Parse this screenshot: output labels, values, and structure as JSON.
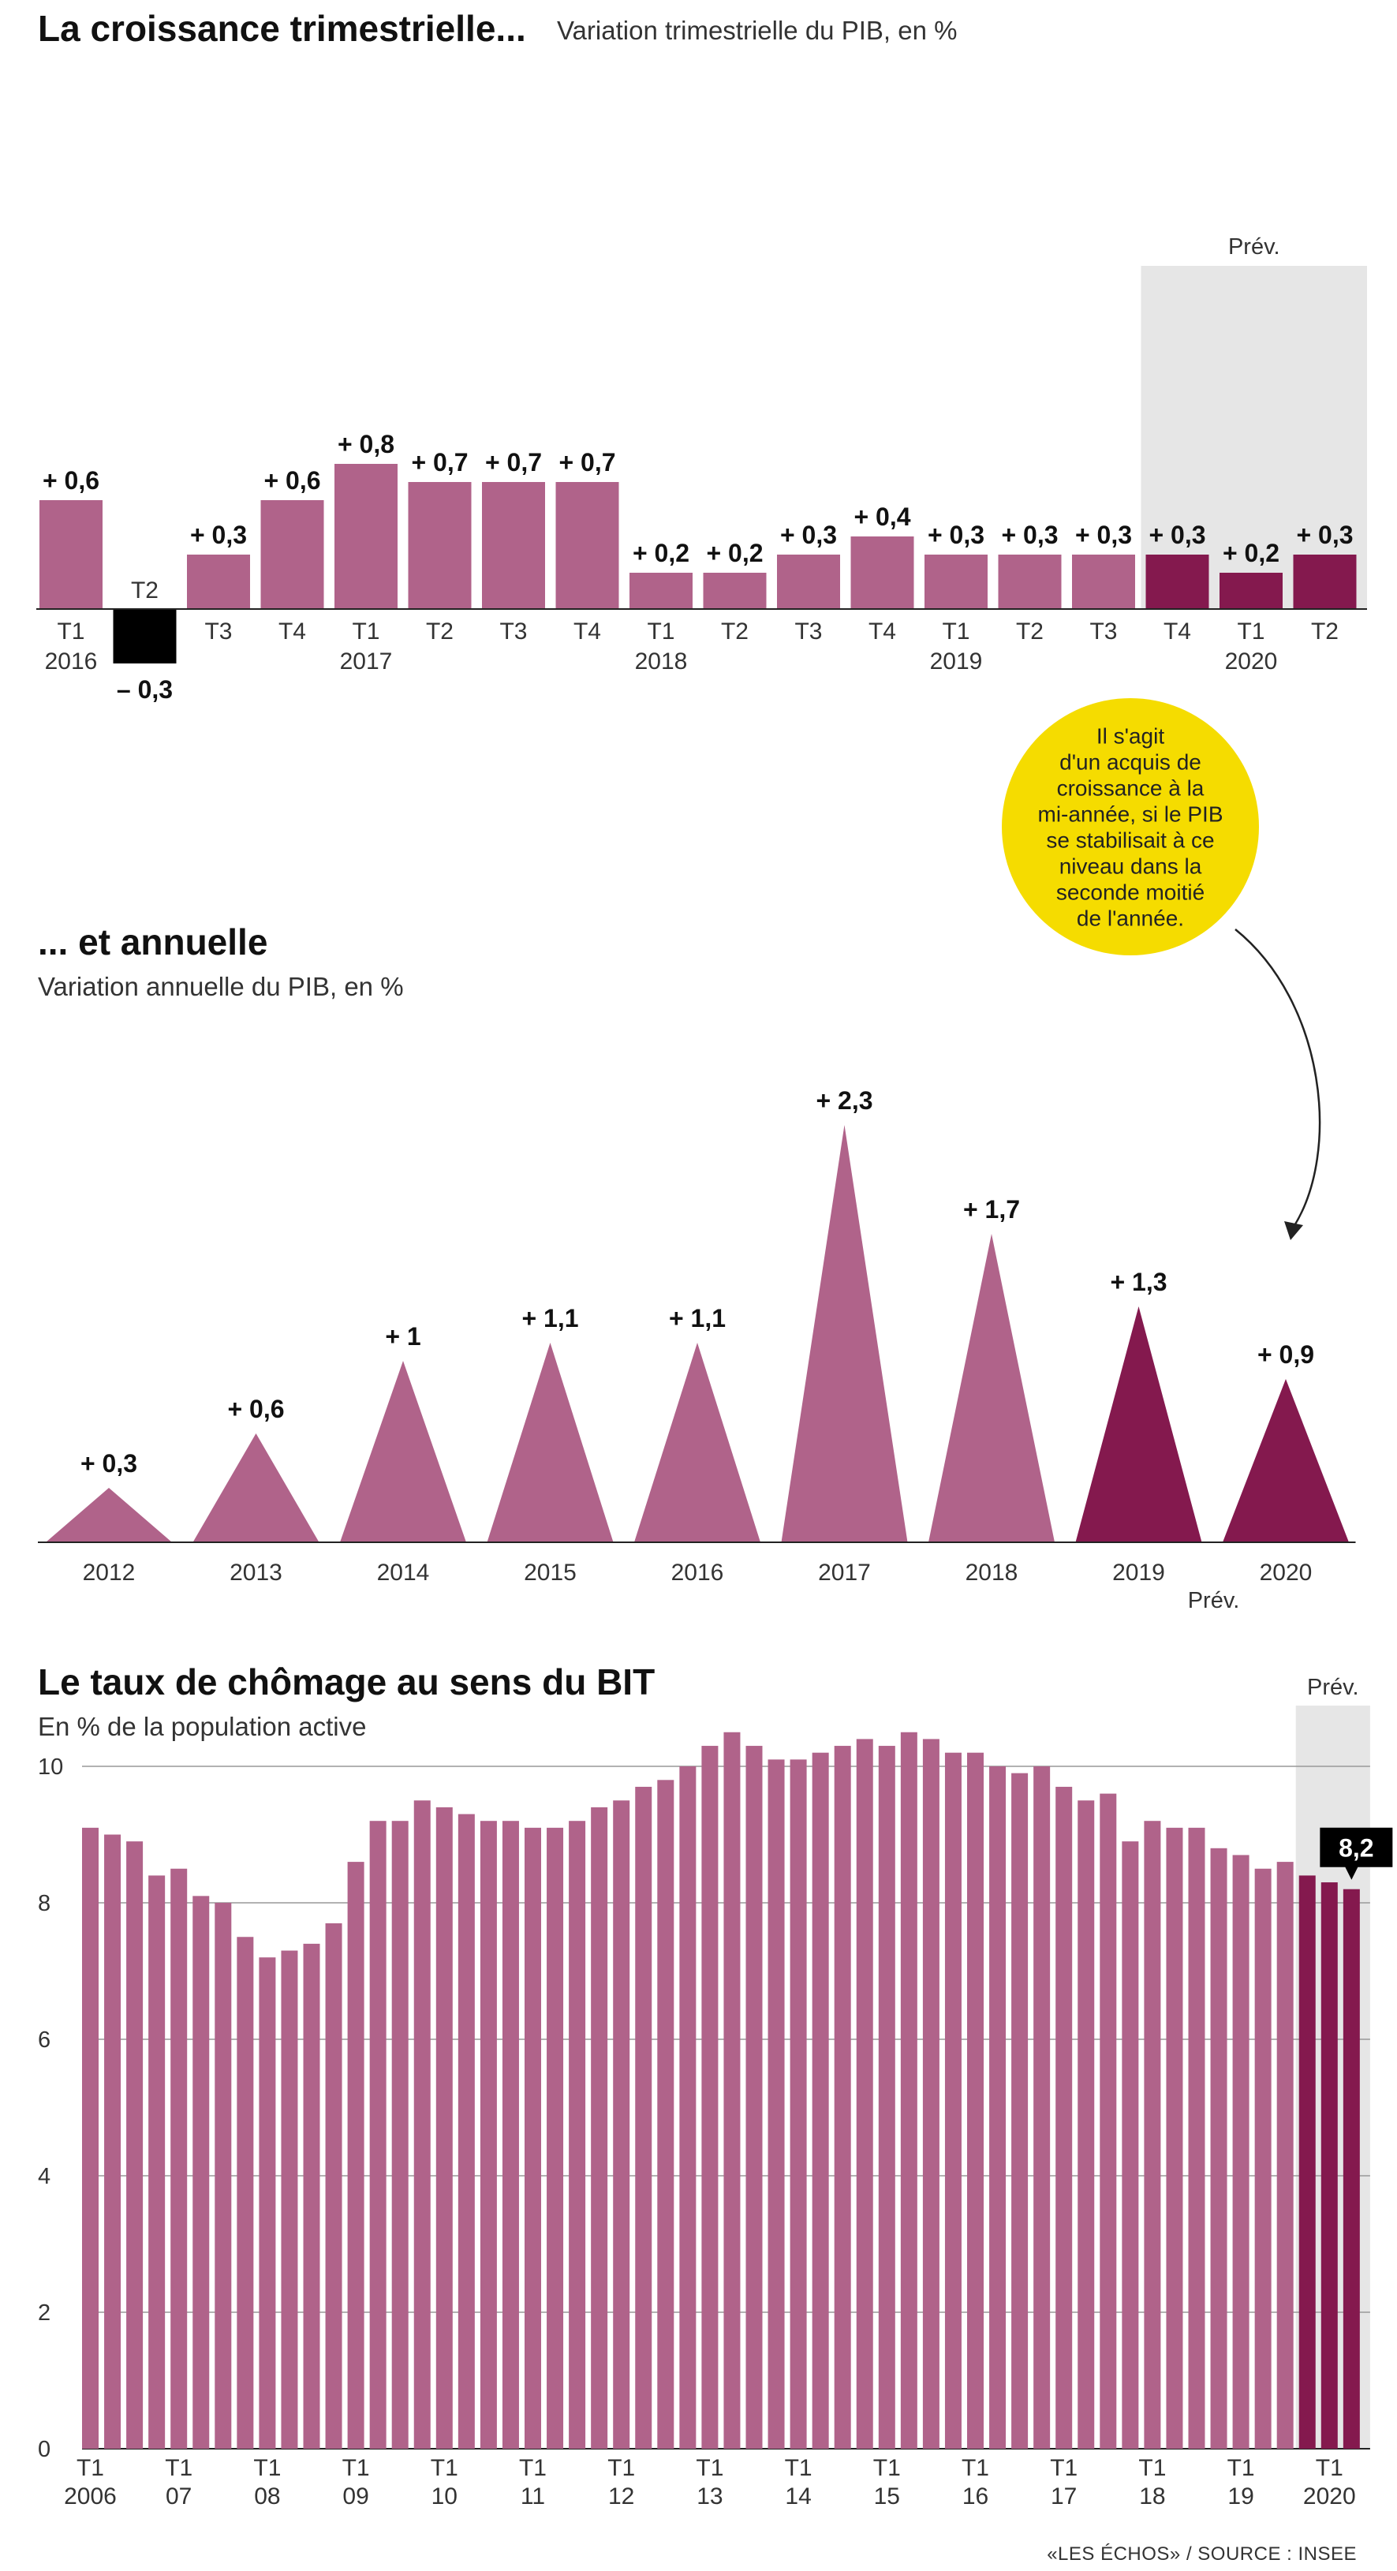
{
  "colors": {
    "past": "#b0638a",
    "forecast": "#84194e",
    "negative": "#000000",
    "forecast_band": "#e6e6e6",
    "note_bubble": "#f5dc00",
    "gridline": "#999999"
  },
  "chart_data": [
    {
      "type": "bar",
      "title": "La croissance trimestrielle...",
      "subtitle": "Variation trimestrielle du PIB, en %",
      "categories": [
        "T1",
        "T2",
        "T3",
        "T4",
        "T1",
        "T2",
        "T3",
        "T4",
        "T1",
        "T2",
        "T3",
        "T4",
        "T1",
        "T2",
        "T3",
        "T4",
        "T1",
        "T2"
      ],
      "years": [
        "2016",
        "",
        "",
        "",
        "2017",
        "",
        "",
        "",
        "2018",
        "",
        "",
        "",
        "2019",
        "",
        "",
        "",
        "2020",
        ""
      ],
      "values": [
        0.6,
        -0.3,
        0.3,
        0.6,
        0.8,
        0.7,
        0.7,
        0.7,
        0.2,
        0.2,
        0.3,
        0.4,
        0.3,
        0.3,
        0.3,
        0.3,
        0.2,
        0.3
      ],
      "labels": [
        "+ 0,6",
        "– 0,3",
        "+ 0,3",
        "+ 0,6",
        "+ 0,8",
        "+ 0,7",
        "+ 0,7",
        "+ 0,7",
        "+ 0,2",
        "+ 0,2",
        "+ 0,3",
        "+ 0,4",
        "+ 0,3",
        "+ 0,3",
        "+ 0,3",
        "+ 0,3",
        "+ 0,2",
        "+ 0,3"
      ],
      "forecast_from_index": 15,
      "forecast_label": "Prév.",
      "ylim": [
        -0.3,
        0.8
      ],
      "grid": false
    },
    {
      "type": "bar",
      "title": "... et annuelle",
      "subtitle": "Variation annuelle du PIB, en %",
      "categories": [
        "2012",
        "2013",
        "2014",
        "2015",
        "2016",
        "2017",
        "2018",
        "2019",
        "2020"
      ],
      "values": [
        0.3,
        0.6,
        1,
        1.1,
        1.1,
        2.3,
        1.7,
        1.3,
        0.9
      ],
      "labels": [
        "+ 0,3",
        "+ 0,6",
        "+ 1",
        "+ 1,1",
        "+ 1,1",
        "+ 2,3",
        "+ 1,7",
        "+ 1,3",
        "+ 0,9"
      ],
      "forecast_from_index": 7,
      "forecast_label": "Prév.",
      "note_lines": [
        "Il s'agit",
        "d'un acquis de",
        "croissance à la",
        "mi-année, si le PIB",
        "se stabilisait à ce",
        "niveau dans la",
        "seconde moitié",
        "de l'année."
      ],
      "ylim": [
        0,
        2.3
      ],
      "grid": false
    },
    {
      "type": "bar",
      "title": "Le taux de chômage au sens du BIT",
      "subtitle": "En % de la population active",
      "yticks": [
        "0",
        "2",
        "4",
        "6",
        "8",
        "10"
      ],
      "ytick_values": [
        0,
        2,
        4,
        6,
        8,
        10
      ],
      "ylim": [
        0,
        10
      ],
      "grid": true,
      "values": [
        9.1,
        9.0,
        8.9,
        8.4,
        8.5,
        8.1,
        8.0,
        7.5,
        7.2,
        7.3,
        7.4,
        7.7,
        8.6,
        9.2,
        9.2,
        9.5,
        9.4,
        9.3,
        9.2,
        9.2,
        9.1,
        9.1,
        9.2,
        9.4,
        9.5,
        9.7,
        9.8,
        10.0,
        10.3,
        10.5,
        10.3,
        10.1,
        10.1,
        10.2,
        10.3,
        10.4,
        10.3,
        10.5,
        10.4,
        10.2,
        10.2,
        10.0,
        9.9,
        10.0,
        9.7,
        9.5,
        9.6,
        8.9,
        9.2,
        9.1,
        9.1,
        8.8,
        8.7,
        8.5,
        8.6,
        8.4,
        8.3,
        8.2
      ],
      "year_ticks": [
        {
          "index": 0,
          "q": "T1",
          "label": "2006"
        },
        {
          "index": 4,
          "q": "T1",
          "label": "07"
        },
        {
          "index": 8,
          "q": "T1",
          "label": "08"
        },
        {
          "index": 12,
          "q": "T1",
          "label": "09"
        },
        {
          "index": 16,
          "q": "T1",
          "label": "10"
        },
        {
          "index": 20,
          "q": "T1",
          "label": "11"
        },
        {
          "index": 24,
          "q": "T1",
          "label": "12"
        },
        {
          "index": 28,
          "q": "T1",
          "label": "13"
        },
        {
          "index": 32,
          "q": "T1",
          "label": "14"
        },
        {
          "index": 36,
          "q": "T1",
          "label": "15"
        },
        {
          "index": 40,
          "q": "T1",
          "label": "16"
        },
        {
          "index": 44,
          "q": "T1",
          "label": "17"
        },
        {
          "index": 48,
          "q": "T1",
          "label": "18"
        },
        {
          "index": 52,
          "q": "T1",
          "label": "19"
        },
        {
          "index": 56,
          "q": "T1",
          "label": "2020"
        }
      ],
      "forecast_from_index": 55,
      "forecast_label": "Prév.",
      "last_value_label": "8,2"
    }
  ],
  "source": "«LES ÉCHOS» / SOURCE : INSEE"
}
